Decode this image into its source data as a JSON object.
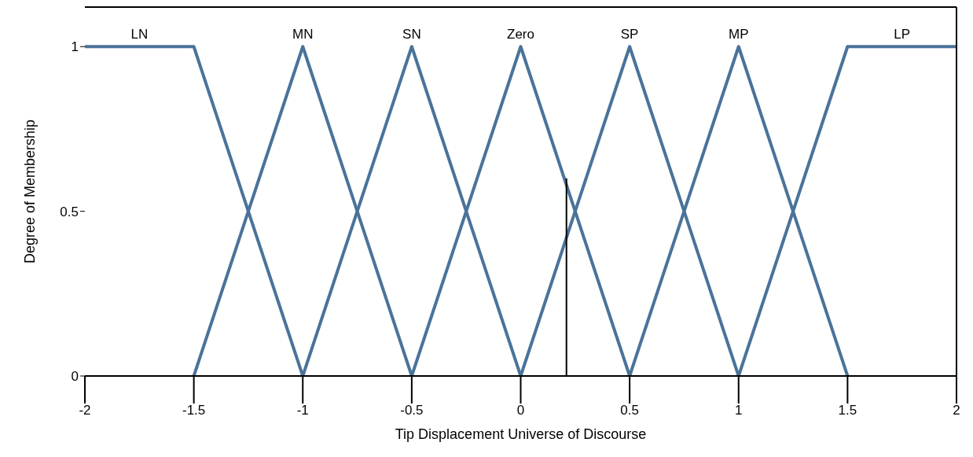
{
  "chart_data": {
    "type": "line",
    "xlabel": "Tip Displacement Universe of Discourse",
    "ylabel": "Degree of Membership",
    "xlim": [
      -2,
      2
    ],
    "xticks": [
      -2,
      -1.5,
      -1,
      -0.5,
      0,
      0.5,
      1,
      1.5,
      2
    ],
    "ylim": [
      0,
      1.12
    ],
    "yticks": [
      0,
      0.5,
      1
    ],
    "grid": false,
    "marker": "none",
    "line_style": "solid",
    "series": [
      {
        "name": "LN",
        "color": "#4a7399",
        "x": [
          -2,
          -1.5,
          -1
        ],
        "values": [
          1,
          1,
          0
        ]
      },
      {
        "name": "MN",
        "color": "#4a7399",
        "x": [
          -1.5,
          -1,
          -0.5
        ],
        "values": [
          0,
          1,
          0
        ]
      },
      {
        "name": "SN",
        "color": "#4a7399",
        "x": [
          -1,
          -0.5,
          0
        ],
        "values": [
          0,
          1,
          0
        ]
      },
      {
        "name": "Zero",
        "color": "#4a7399",
        "x": [
          -0.5,
          0,
          0.5
        ],
        "values": [
          0,
          1,
          0
        ]
      },
      {
        "name": "SP",
        "color": "#4a7399",
        "x": [
          0,
          0.5,
          1
        ],
        "values": [
          0,
          1,
          0
        ]
      },
      {
        "name": "MP",
        "color": "#4a7399",
        "x": [
          0.5,
          1,
          1.5
        ],
        "values": [
          0,
          1,
          0
        ]
      },
      {
        "name": "LP",
        "color": "#4a7399",
        "x": [
          1,
          1.5,
          2
        ],
        "values": [
          0,
          1,
          1
        ]
      },
      {
        "color": "#000000",
        "x": [
          0.21,
          0.21
        ],
        "values": [
          0,
          0.6
        ]
      }
    ]
  }
}
